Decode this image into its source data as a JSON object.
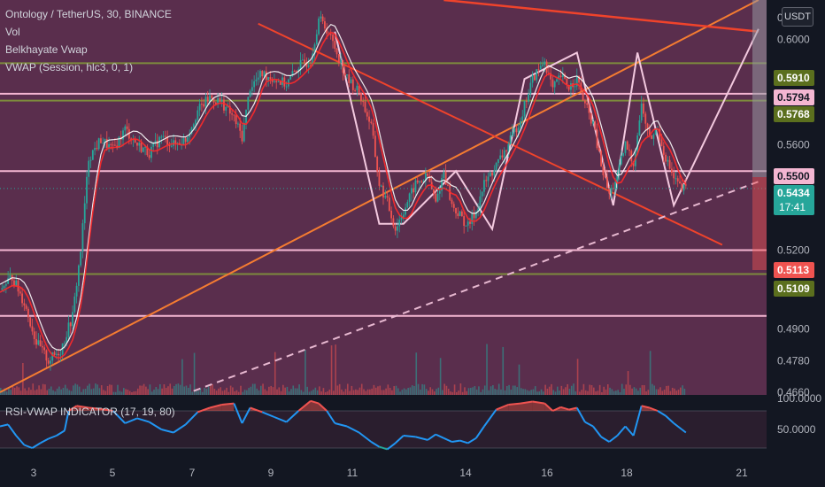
{
  "legend": {
    "symbol": "Ontology / TetherUS, 30, BINANCE",
    "vol": "Vol",
    "vwap1": "Belkhayate Vwap",
    "vwap2": "VWAP (Session, hlc3, 0, 1)"
  },
  "rsi_label": "RSI-VWAP INDICATOR (17, 19, 80)",
  "currency": "USDT",
  "colors": {
    "background": "#131722",
    "panel": "#5a2e4d",
    "candle_up": "#26a69a",
    "candle_down": "#ef5350",
    "hline_pink": "#f4b6d2",
    "hline_olive": "#7d8a3d",
    "trend_orange": "#f57c31",
    "trend_red": "#f0432b",
    "zigzag": "#f3c9df",
    "rsi_line": "#2196f3"
  },
  "chart_data": [
    {
      "type": "candlestick",
      "title": "Ontology / TetherUS, 30, BINANCE",
      "x_ticks": [
        "3",
        "5",
        "7",
        "9",
        "11",
        "14",
        "16",
        "18",
        "21"
      ],
      "y_ticks": [
        "0.6000",
        "0.5600",
        "0.5200",
        "0.4900",
        "0.4780",
        "0.4660"
      ],
      "y_range": [
        0.465,
        0.615
      ],
      "price_labels": [
        {
          "value": "0.5910",
          "kind": "olive"
        },
        {
          "value": "0.5794",
          "kind": "pink"
        },
        {
          "value": "0.5768",
          "kind": "olive"
        },
        {
          "value": "0.5500",
          "kind": "pink"
        },
        {
          "value": "0.5434",
          "kind": "last",
          "countdown": "17:41"
        },
        {
          "value": "0.5113",
          "kind": "red"
        },
        {
          "value": "0.5109",
          "kind": "olive"
        }
      ],
      "horizontal_levels": [
        {
          "price": 0.591,
          "color": "olive"
        },
        {
          "price": 0.5794,
          "color": "pink"
        },
        {
          "price": 0.5768,
          "color": "olive"
        },
        {
          "price": 0.55,
          "color": "pink"
        },
        {
          "price": 0.52,
          "color": "pink"
        },
        {
          "price": 0.5109,
          "color": "olive"
        },
        {
          "price": 0.495,
          "color": "pink"
        }
      ],
      "price_path": [
        [
          0,
          0.505
        ],
        [
          3,
          0.51
        ],
        [
          6,
          0.5
        ],
        [
          9,
          0.485
        ],
        [
          12,
          0.478
        ],
        [
          15,
          0.482
        ],
        [
          18,
          0.495
        ],
        [
          20,
          0.52
        ],
        [
          22,
          0.555
        ],
        [
          25,
          0.562
        ],
        [
          28,
          0.558
        ],
        [
          31,
          0.566
        ],
        [
          34,
          0.56
        ],
        [
          37,
          0.557
        ],
        [
          40,
          0.563
        ],
        [
          43,
          0.56
        ],
        [
          46,
          0.562
        ],
        [
          49,
          0.573
        ],
        [
          52,
          0.578
        ],
        [
          55,
          0.576
        ],
        [
          58,
          0.57
        ],
        [
          60,
          0.563
        ],
        [
          62,
          0.582
        ],
        [
          65,
          0.587
        ],
        [
          68,
          0.585
        ],
        [
          71,
          0.583
        ],
        [
          74,
          0.59
        ],
        [
          77,
          0.592
        ],
        [
          79,
          0.608
        ],
        [
          81,
          0.604
        ],
        [
          83,
          0.597
        ],
        [
          86,
          0.585
        ],
        [
          89,
          0.58
        ],
        [
          92,
          0.567
        ],
        [
          94,
          0.545
        ],
        [
          96,
          0.538
        ],
        [
          98,
          0.528
        ],
        [
          100,
          0.535
        ],
        [
          103,
          0.545
        ],
        [
          106,
          0.548
        ],
        [
          108,
          0.538
        ],
        [
          110,
          0.55
        ],
        [
          112,
          0.537
        ],
        [
          114,
          0.533
        ],
        [
          116,
          0.529
        ],
        [
          118,
          0.535
        ],
        [
          120,
          0.545
        ],
        [
          123,
          0.552
        ],
        [
          126,
          0.56
        ],
        [
          129,
          0.57
        ],
        [
          132,
          0.585
        ],
        [
          135,
          0.592
        ],
        [
          137,
          0.581
        ],
        [
          139,
          0.586
        ],
        [
          141,
          0.582
        ],
        [
          143,
          0.585
        ],
        [
          145,
          0.575
        ],
        [
          147,
          0.568
        ],
        [
          149,
          0.552
        ],
        [
          151,
          0.541
        ],
        [
          153,
          0.548
        ],
        [
          155,
          0.56
        ],
        [
          157,
          0.553
        ],
        [
          159,
          0.575
        ],
        [
          161,
          0.562
        ],
        [
          163,
          0.566
        ],
        [
          165,
          0.555
        ],
        [
          167,
          0.547
        ],
        [
          169,
          0.543
        ],
        [
          170,
          0.5434
        ]
      ],
      "series": [
        {
          "name": "Vol"
        },
        {
          "name": "Belkhayate Vwap"
        },
        {
          "name": "VWAP (Session, hlc3, 0, 1)"
        }
      ]
    },
    {
      "type": "line",
      "title": "RSI-VWAP INDICATOR (17, 19, 80)",
      "y_ticks": [
        "100.0000",
        "50.0000"
      ],
      "y_range": [
        0,
        100
      ],
      "overbought": 80,
      "oversold": 20,
      "values": [
        [
          0,
          55
        ],
        [
          2,
          58
        ],
        [
          4,
          40
        ],
        [
          6,
          25
        ],
        [
          8,
          20
        ],
        [
          10,
          28
        ],
        [
          12,
          35
        ],
        [
          14,
          40
        ],
        [
          16,
          48
        ],
        [
          17,
          80
        ],
        [
          19,
          88
        ],
        [
          22,
          85
        ],
        [
          25,
          83
        ],
        [
          28,
          80
        ],
        [
          31,
          60
        ],
        [
          34,
          68
        ],
        [
          37,
          62
        ],
        [
          40,
          50
        ],
        [
          43,
          45
        ],
        [
          46,
          58
        ],
        [
          49,
          78
        ],
        [
          52,
          85
        ],
        [
          55,
          90
        ],
        [
          58,
          92
        ],
        [
          60,
          60
        ],
        [
          62,
          85
        ],
        [
          65,
          78
        ],
        [
          68,
          70
        ],
        [
          71,
          62
        ],
        [
          74,
          80
        ],
        [
          77,
          96
        ],
        [
          79,
          92
        ],
        [
          81,
          80
        ],
        [
          83,
          60
        ],
        [
          86,
          55
        ],
        [
          89,
          45
        ],
        [
          92,
          30
        ],
        [
          94,
          22
        ],
        [
          96,
          18
        ],
        [
          98,
          28
        ],
        [
          100,
          40
        ],
        [
          103,
          38
        ],
        [
          106,
          33
        ],
        [
          108,
          42
        ],
        [
          110,
          36
        ],
        [
          112,
          30
        ],
        [
          114,
          32
        ],
        [
          116,
          28
        ],
        [
          118,
          36
        ],
        [
          120,
          55
        ],
        [
          123,
          82
        ],
        [
          126,
          90
        ],
        [
          129,
          92
        ],
        [
          132,
          95
        ],
        [
          135,
          92
        ],
        [
          137,
          80
        ],
        [
          139,
          86
        ],
        [
          141,
          82
        ],
        [
          143,
          85
        ],
        [
          145,
          62
        ],
        [
          147,
          55
        ],
        [
          149,
          38
        ],
        [
          151,
          30
        ],
        [
          153,
          40
        ],
        [
          155,
          55
        ],
        [
          157,
          40
        ],
        [
          159,
          88
        ],
        [
          161,
          85
        ],
        [
          163,
          80
        ],
        [
          165,
          72
        ],
        [
          167,
          60
        ],
        [
          169,
          50
        ],
        [
          170,
          45
        ]
      ]
    }
  ]
}
